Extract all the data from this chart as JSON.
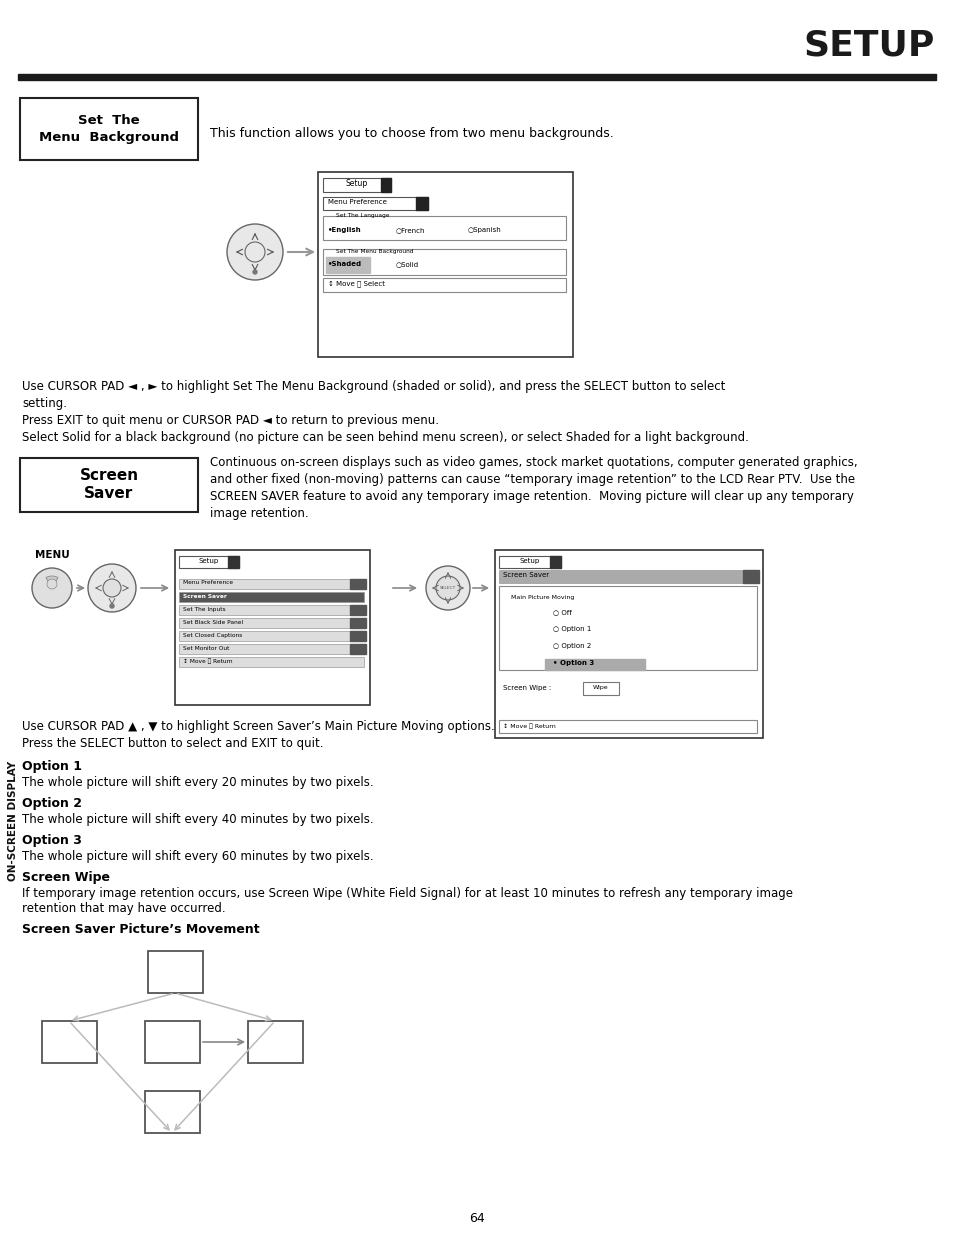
{
  "title": "SETUP",
  "page_number": "64",
  "bg": "#ffffff",
  "section1_label_line1": "Set  The",
  "section1_label_line2": "Menu  Background",
  "section1_desc": "This function allows you to choose from two menu backgrounds.",
  "body1_line1": "Use CURSOR PAD ◄ , ► to highlight Set The Menu Background (shaded or solid), and press the SELECT button to select",
  "body1_line2": "setting.",
  "body1_line3": "Press EXIT to quit menu or CURSOR PAD ◄ to return to previous menu.",
  "body1_line4": "Select Solid for a black background (no picture can be seen behind menu screen), or select Shaded for a light background.",
  "section2_label_line1": "Screen",
  "section2_label_line2": "Saver",
  "section2_desc_line1": "Continuous on-screen displays such as video games, stock market quotations, computer generated graphics,",
  "section2_desc_line2": "and other fixed (non-moving) patterns can cause “temporary image retention” to the LCD Rear PTV.  Use the",
  "section2_desc_line3": "SCREEN SAVER feature to avoid any temporary image retention.  Moving picture will clear up any temporary",
  "section2_desc_line4": "image retention.",
  "body2_line1": "Use CURSOR PAD ▲ , ▼ to highlight Screen Saver’s Main Picture Moving options.",
  "body2_line2": "Press the SELECT button to select and EXIT to quit.",
  "opt1_bold": "Option 1",
  "opt1_text": "The whole picture will shift every 20 minutes by two pixels.",
  "opt2_bold": "Option 2",
  "opt2_text": "The whole picture will shift every 40 minutes by two pixels.",
  "opt3_bold": "Option 3",
  "opt3_text": "The whole picture will shift every 60 minutes by two pixels.",
  "sw_bold": "Screen Wipe",
  "sw_text1": "If temporary image retention occurs, use Screen Wipe (White Field Signal) for at least 10 minutes to refresh any temporary image",
  "sw_text2": "retention that may have occurred.",
  "ss_bold": "Screen Saver Picture’s Movement",
  "sidebar_text": "ON-SCREEN DISPLAY",
  "menu_text": "MENU"
}
